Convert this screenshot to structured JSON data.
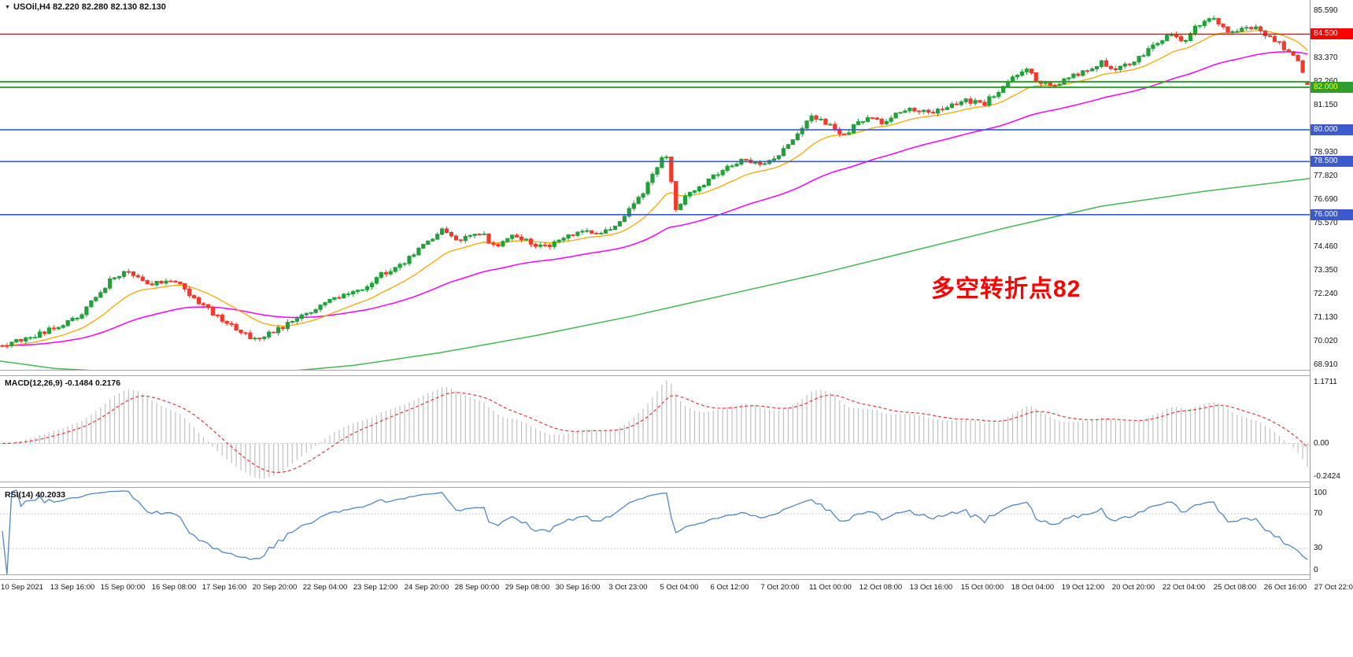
{
  "header": {
    "marker_icon": "triangle-marker"
  },
  "chart_data": {
    "type": "candlestick",
    "symbol": "USOil",
    "timeframe": "H4",
    "title": "USOil,H4  82.220 82.280 82.130 82.130",
    "ohlc": {
      "open": 82.22,
      "high": 82.28,
      "low": 82.13,
      "close": 82.13
    },
    "annotation": {
      "text": "多空转折点82",
      "color": "#ff0000"
    },
    "y_axis": {
      "min": 68.69,
      "max": 86.11,
      "grid_labels": [
        "85.590",
        "83.370",
        "82.260",
        "81.150",
        "78.930",
        "77.820",
        "76.690",
        "75.570",
        "74.460",
        "73.350",
        "72.240",
        "71.130",
        "70.020",
        "68.910"
      ]
    },
    "x_axis": {
      "labels": [
        "10 Sep 2021",
        "13 Sep 16:00",
        "15 Sep 00:00",
        "16 Sep 08:00",
        "17 Sep 16:00",
        "20 Sep 20:00",
        "22 Sep 04:00",
        "23 Sep 12:00",
        "24 Sep 20:00",
        "28 Sep 00:00",
        "29 Sep 08:00",
        "30 Sep 16:00",
        "3 Oct 23:00",
        "5 Oct 04:00",
        "6 Oct 12:00",
        "7 Oct 20:00",
        "11 Oct 00:00",
        "12 Oct 08:00",
        "13 Oct 16:00",
        "15 Oct 00:00",
        "18 Oct 04:00",
        "19 Oct 12:00",
        "20 Oct 20:00",
        "22 Oct 04:00",
        "25 Oct 08:00",
        "26 Oct 16:00",
        "27 Oct 22:00"
      ]
    },
    "horizontal_lines": [
      {
        "price": 84.5,
        "color": "#ff0000",
        "width": 1.4,
        "badge": "84.500",
        "badge_fg": "#ffffff"
      },
      {
        "price": 82.26,
        "color": "#2e9e2e",
        "width": 2.0,
        "badge": null,
        "badge_fg": null
      },
      {
        "price": 82.0,
        "color": "#2e9e2e",
        "width": 2.0,
        "badge": "82.000",
        "badge_fg": "#ffff00"
      },
      {
        "price": 80.0,
        "color": "#3b5bcc",
        "width": 1.6,
        "badge": "80.000",
        "badge_fg": "#ffffff"
      },
      {
        "price": 78.5,
        "color": "#3b5bcc",
        "width": 1.6,
        "badge": "78.500",
        "badge_fg": "#ffffff"
      },
      {
        "price": 76.0,
        "color": "#3b5bcc",
        "width": 1.6,
        "badge": "76.000",
        "badge_fg": "#ffffff"
      }
    ],
    "candles": {
      "count": 280,
      "up_color": "#22a13a",
      "down_color": "#f2392b",
      "last": {
        "open": 82.22,
        "high": 82.28,
        "low": 82.13,
        "close": 82.13
      },
      "price_path": [
        [
          0,
          69.8
        ],
        [
          40,
          70.2
        ],
        [
          100,
          71.2
        ],
        [
          140,
          72.9
        ],
        [
          158,
          73.35
        ],
        [
          175,
          73.1
        ],
        [
          192,
          72.7
        ],
        [
          210,
          72.95
        ],
        [
          224,
          72.85
        ],
        [
          240,
          72.3
        ],
        [
          262,
          71.6
        ],
        [
          287,
          70.9
        ],
        [
          310,
          70.35
        ],
        [
          326,
          70.15
        ],
        [
          351,
          70.55
        ],
        [
          380,
          71.1
        ],
        [
          415,
          71.9
        ],
        [
          445,
          72.25
        ],
        [
          466,
          72.6
        ],
        [
          482,
          73.15
        ],
        [
          512,
          73.7
        ],
        [
          544,
          74.7
        ],
        [
          562,
          75.35
        ],
        [
          580,
          74.7
        ],
        [
          596,
          74.95
        ],
        [
          612,
          75.1
        ],
        [
          628,
          74.5
        ],
        [
          648,
          74.95
        ],
        [
          666,
          74.8
        ],
        [
          684,
          74.45
        ],
        [
          700,
          74.55
        ],
        [
          718,
          74.95
        ],
        [
          737,
          75.25
        ],
        [
          760,
          75.1
        ],
        [
          778,
          75.4
        ],
        [
          801,
          76.3
        ],
        [
          820,
          77.2
        ],
        [
          838,
          78.5
        ],
        [
          848,
          78.85
        ],
        [
          858,
          76.25
        ],
        [
          872,
          76.9
        ],
        [
          890,
          77.3
        ],
        [
          910,
          77.9
        ],
        [
          929,
          78.3
        ],
        [
          947,
          78.6
        ],
        [
          962,
          78.35
        ],
        [
          978,
          78.6
        ],
        [
          994,
          78.95
        ],
        [
          1012,
          79.8
        ],
        [
          1030,
          80.75
        ],
        [
          1045,
          80.35
        ],
        [
          1058,
          80.15
        ],
        [
          1072,
          79.75
        ],
        [
          1090,
          80.3
        ],
        [
          1106,
          80.6
        ],
        [
          1122,
          80.3
        ],
        [
          1140,
          80.75
        ],
        [
          1160,
          81.0
        ],
        [
          1186,
          80.85
        ],
        [
          1205,
          81.1
        ],
        [
          1225,
          81.35
        ],
        [
          1251,
          81.25
        ],
        [
          1270,
          81.9
        ],
        [
          1290,
          82.6
        ],
        [
          1305,
          82.85
        ],
        [
          1320,
          82.25
        ],
        [
          1338,
          81.95
        ],
        [
          1356,
          82.5
        ],
        [
          1379,
          82.7
        ],
        [
          1398,
          83.2
        ],
        [
          1415,
          82.9
        ],
        [
          1432,
          83.05
        ],
        [
          1450,
          83.5
        ],
        [
          1470,
          84.1
        ],
        [
          1490,
          84.55
        ],
        [
          1505,
          84.15
        ],
        [
          1520,
          84.9
        ],
        [
          1540,
          85.3
        ],
        [
          1552,
          84.85
        ],
        [
          1565,
          84.5
        ],
        [
          1580,
          84.9
        ],
        [
          1598,
          84.75
        ],
        [
          1615,
          84.35
        ],
        [
          1632,
          83.85
        ],
        [
          1645,
          83.45
        ],
        [
          1655,
          82.8
        ],
        [
          1664,
          82.25
        ]
      ]
    },
    "moving_averages": {
      "fast": {
        "period": 16,
        "color": "#ffa500"
      },
      "mid": {
        "period": 55,
        "color": "#ff00ff"
      },
      "slow": {
        "color": "#46b653",
        "path": [
          [
            0,
            69.1
          ],
          [
            70,
            68.75
          ],
          [
            200,
            68.5
          ],
          [
            360,
            68.6
          ],
          [
            450,
            68.9
          ],
          [
            560,
            69.5
          ],
          [
            680,
            70.3
          ],
          [
            800,
            71.2
          ],
          [
            920,
            72.2
          ],
          [
            1040,
            73.2
          ],
          [
            1160,
            74.3
          ],
          [
            1280,
            75.4
          ],
          [
            1400,
            76.4
          ],
          [
            1530,
            77.1
          ],
          [
            1664,
            77.7
          ]
        ]
      }
    },
    "indicators": {
      "macd": {
        "label": "MACD(12,26,9) -0.1484 0.2176",
        "fast": 12,
        "slow": 26,
        "signal": 9,
        "value_main": -0.1484,
        "value_signal": 0.2176,
        "axis_labels": {
          "top": "1.1711",
          "zero": "0.00",
          "bottom": "-0.2424"
        },
        "bar_color": "#c0c0c0",
        "signal_color": "#e53935"
      },
      "rsi": {
        "label": "RSI(14) 40.2033",
        "period": 14,
        "value": 40.2033,
        "levels": [
          70,
          30
        ],
        "axis_labels": {
          "top": "100",
          "upper": "70",
          "lower": "30",
          "bottom": "0"
        },
        "line_color": "#4f86c6"
      }
    }
  }
}
